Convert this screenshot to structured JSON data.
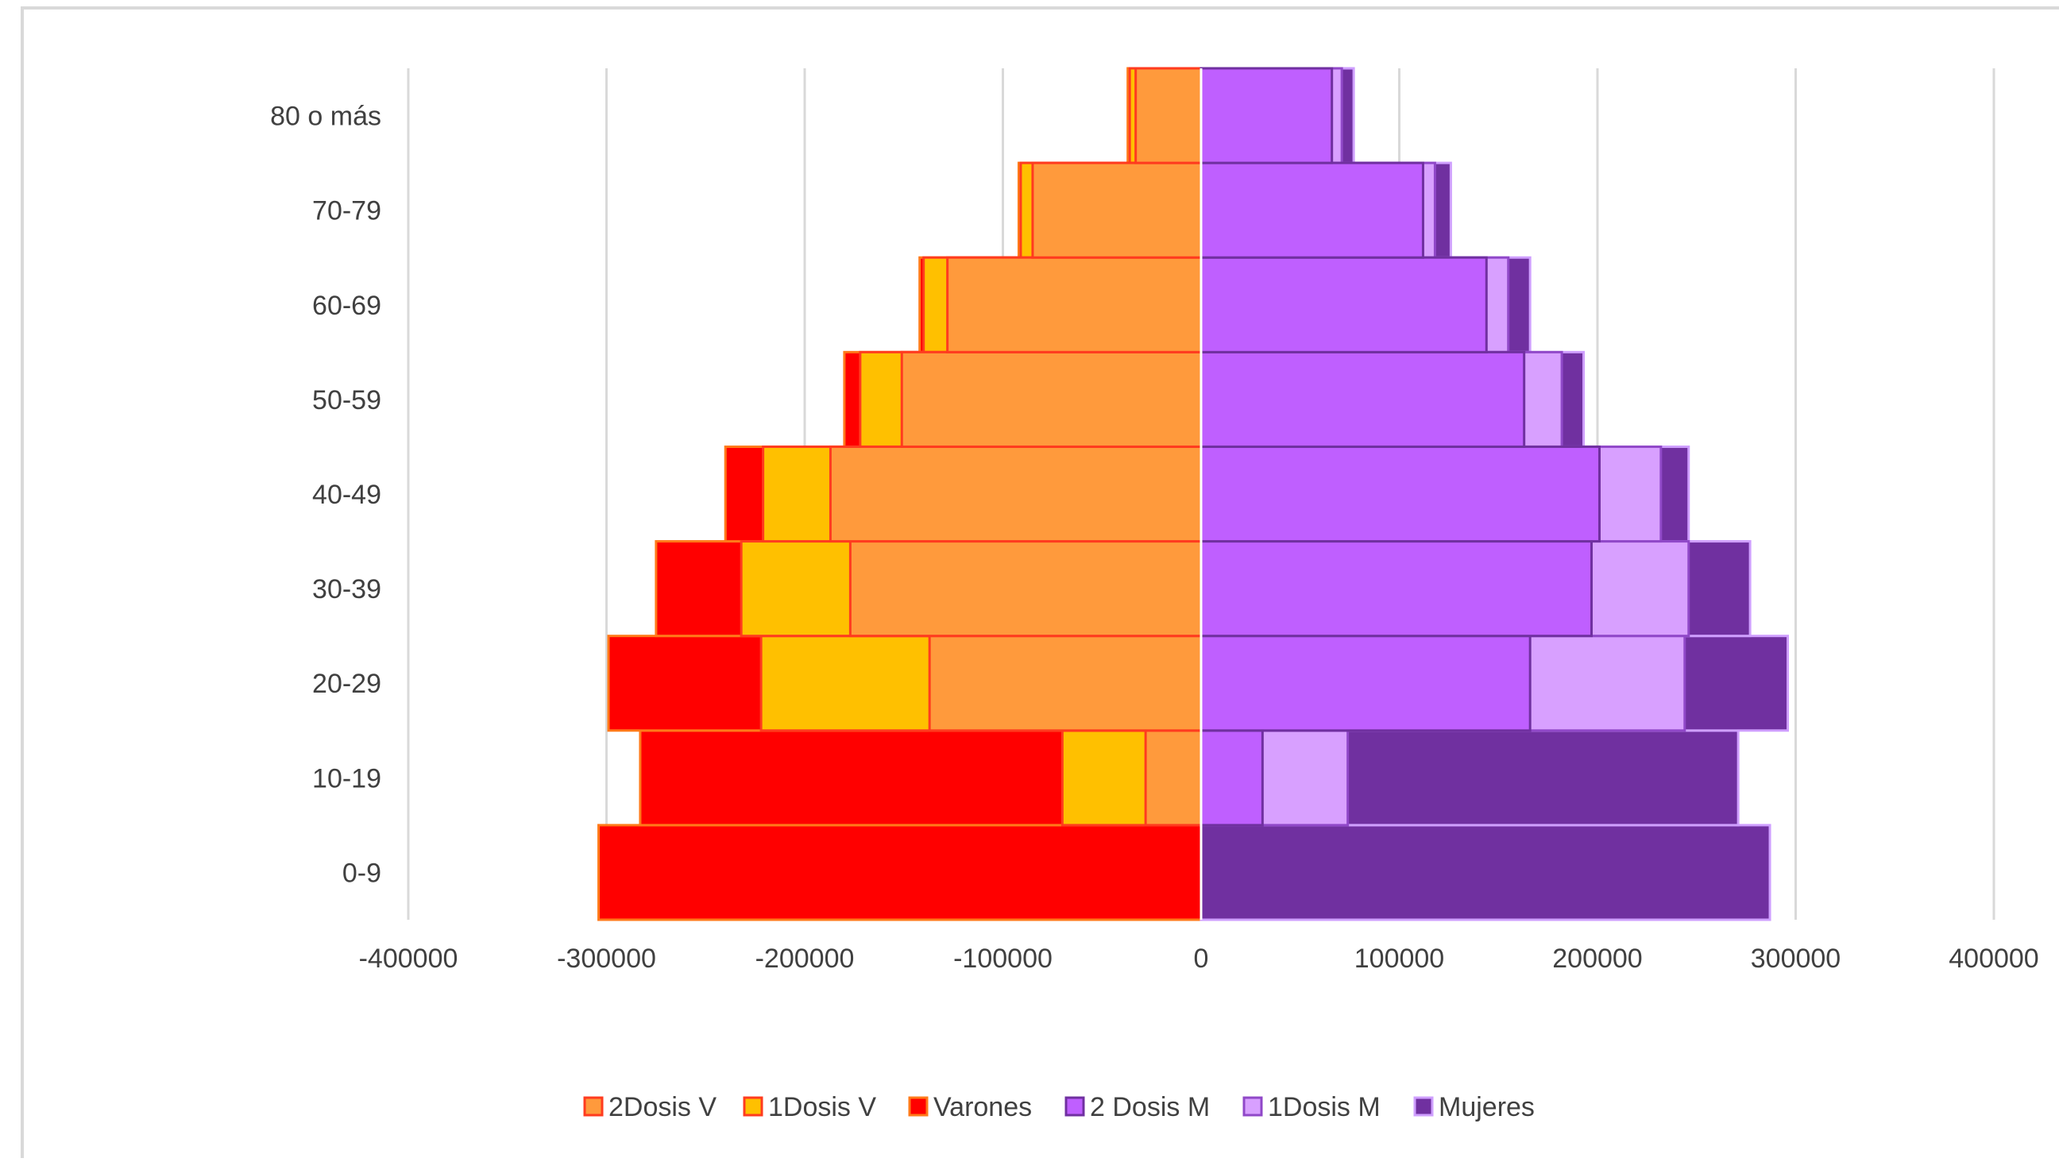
{
  "chart_data": {
    "type": "bar",
    "orientation": "horizontal",
    "stacked": "overlay",
    "title": "",
    "xlabel": "",
    "ylabel": "",
    "categories": [
      "0-9",
      "10-19",
      "20-29",
      "30-39",
      "40-49",
      "50-59",
      "60-69",
      "70-79",
      "80 o más"
    ],
    "x_ticks": [
      "-400000",
      "-300000",
      "-200000",
      "-100000",
      "0",
      "100000",
      "200000",
      "300000",
      "400000"
    ],
    "xlim": [
      -400000,
      400000
    ],
    "grid": "vertical",
    "legend_position": "bottom",
    "series": [
      {
        "name": "2Dosis V",
        "color": "#ff9a3c",
        "stroke": "#ff3b1f",
        "values": [
          0,
          -28000,
          -137000,
          -177000,
          -187000,
          -151000,
          -128000,
          -85000,
          -33000
        ]
      },
      {
        "name": "1Dosis V",
        "color": "#ffc000",
        "stroke": "#ff3b1f",
        "values": [
          0,
          -70000,
          -222000,
          -232000,
          -221000,
          -172000,
          -140000,
          -91000,
          -36000
        ]
      },
      {
        "name": "Varones",
        "color": "#ff0000",
        "stroke": "#ff7a1a",
        "values": [
          -304000,
          -283000,
          -299000,
          -275000,
          -240000,
          -180000,
          -142000,
          -92000,
          -37000
        ]
      },
      {
        "name": "2 Dosis M",
        "color": "#bf5fff",
        "stroke": "#7030a0",
        "values": [
          0,
          31000,
          166000,
          197000,
          201000,
          163000,
          144000,
          112000,
          66000
        ]
      },
      {
        "name": "1Dosis M",
        "color": "#d8a0ff",
        "stroke": "#9048c8",
        "values": [
          0,
          74000,
          244000,
          246000,
          232000,
          182000,
          155000,
          118000,
          71000
        ]
      },
      {
        "name": "Mujeres",
        "color": "#7030a0",
        "stroke": "#cf9fff",
        "values": [
          287000,
          271000,
          296000,
          277000,
          246000,
          193000,
          166000,
          126000,
          77000
        ]
      }
    ]
  }
}
